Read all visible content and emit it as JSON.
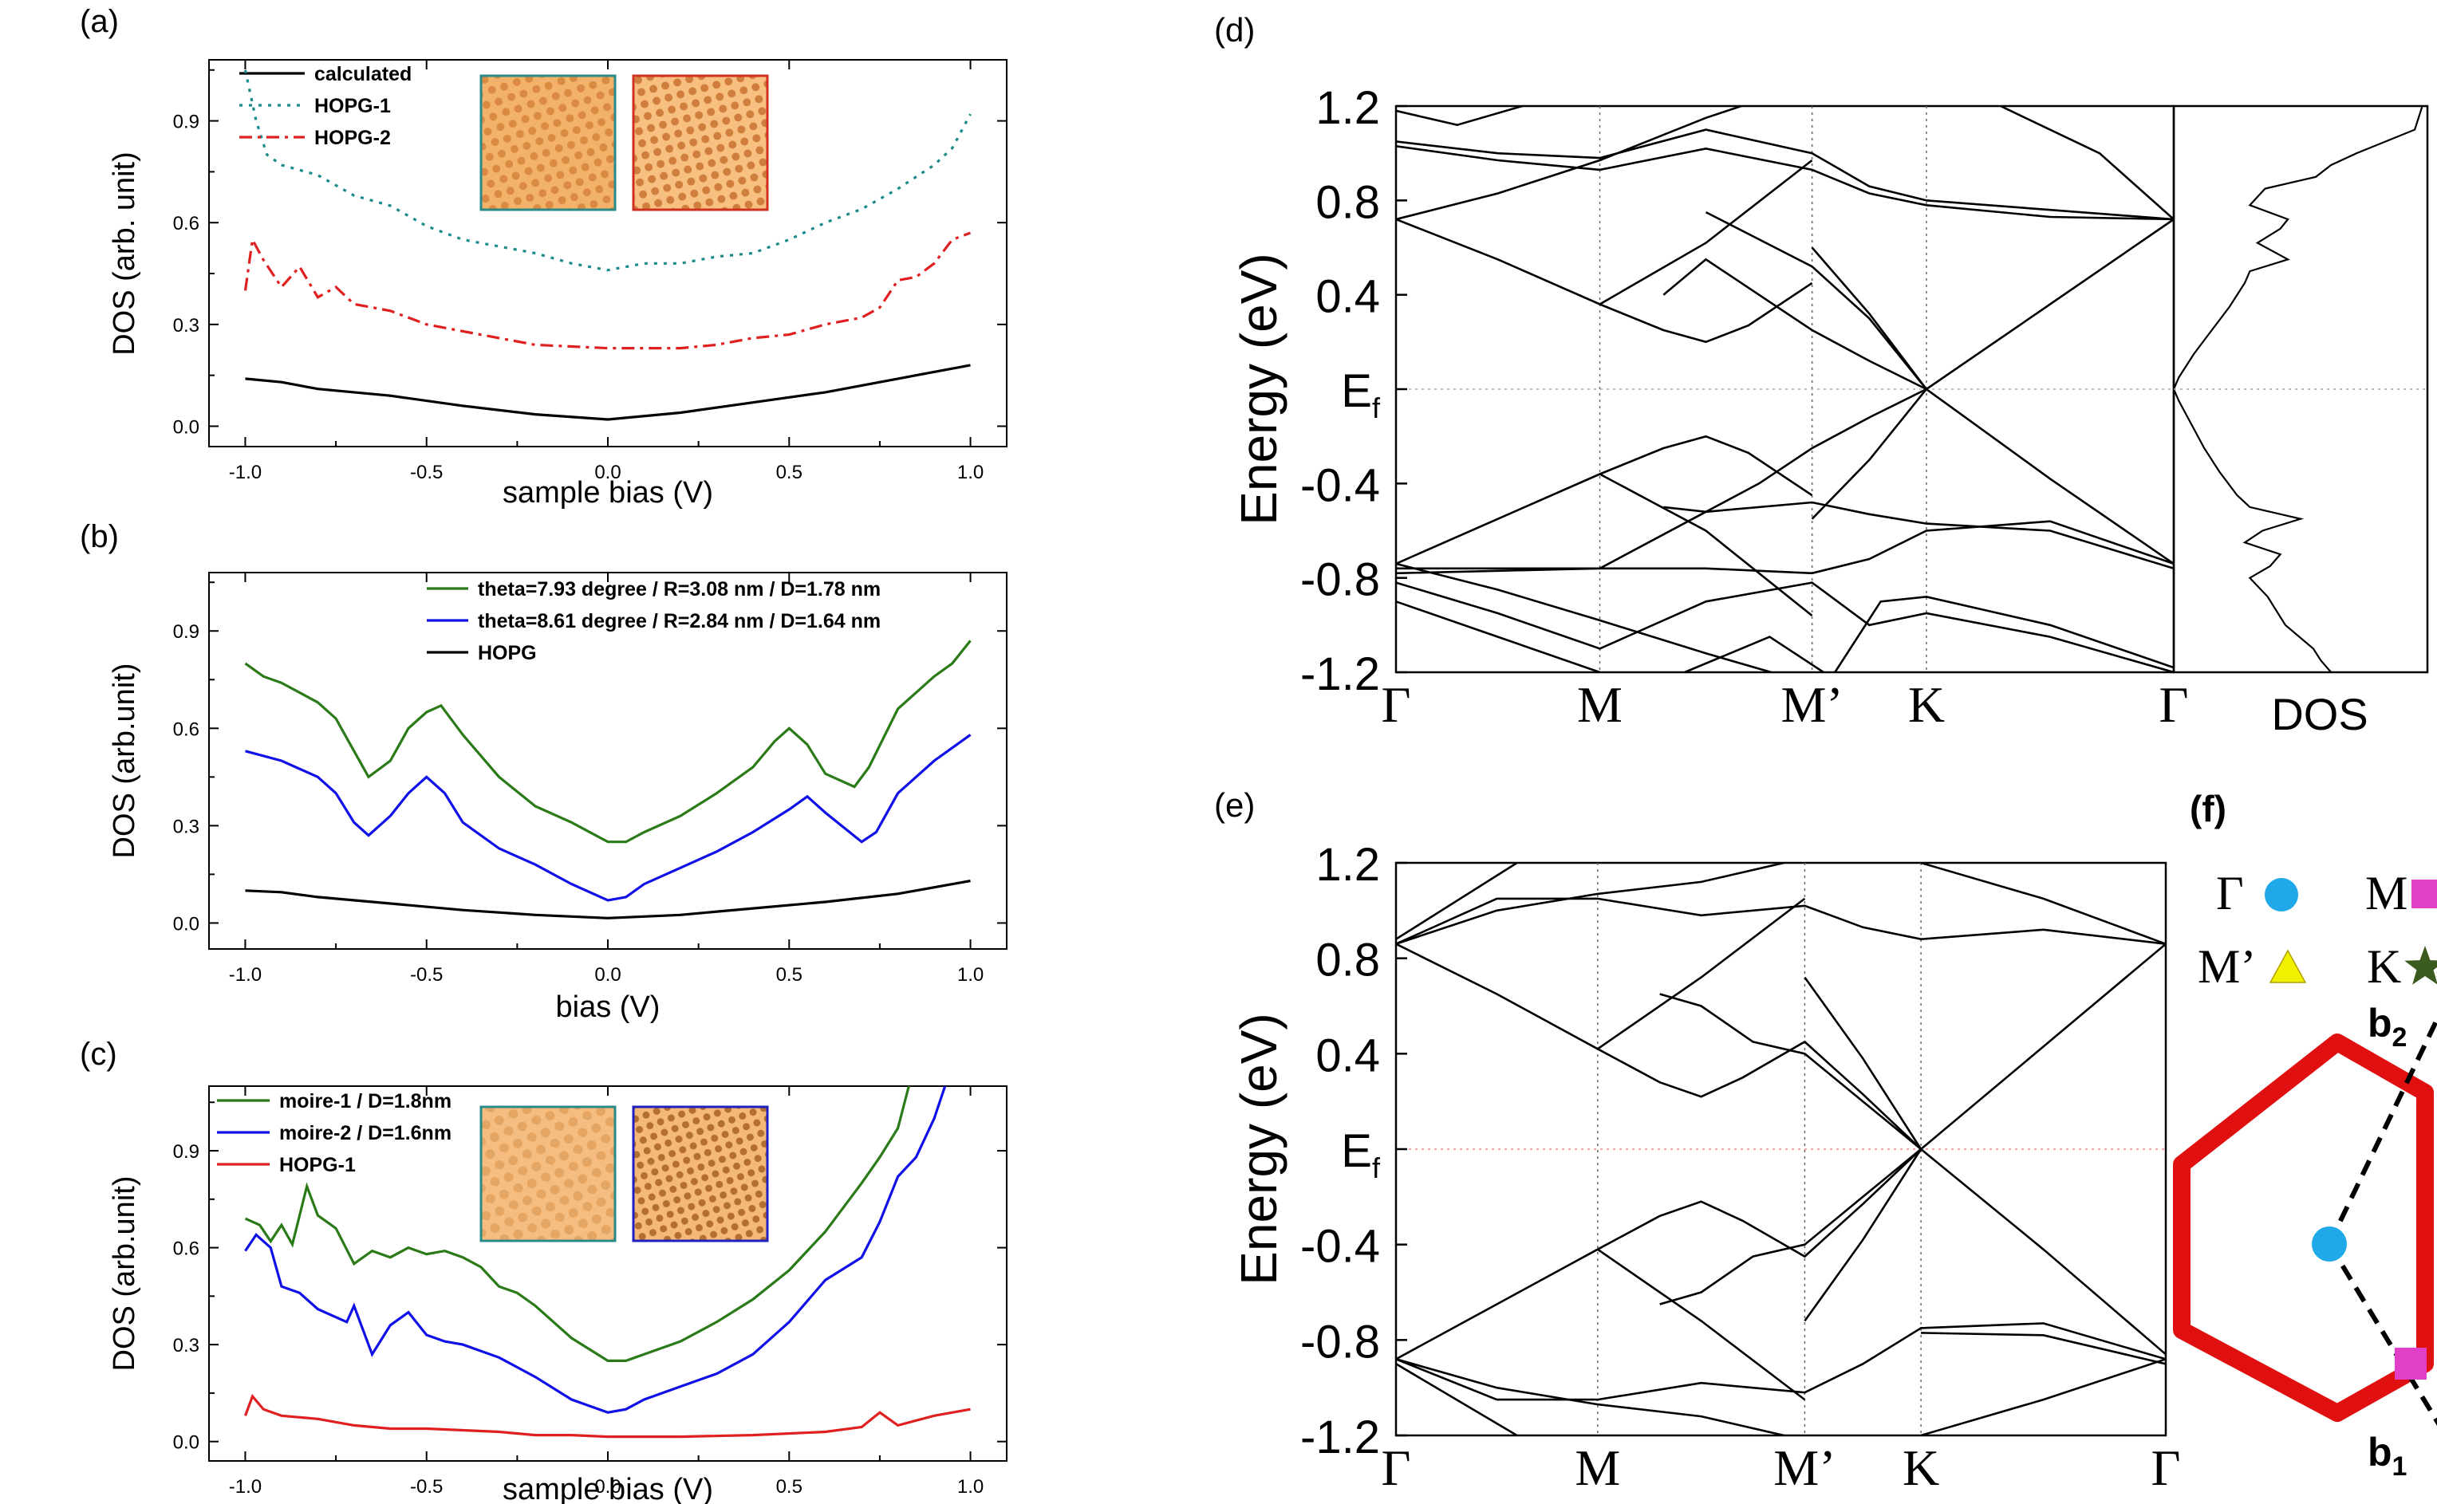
{
  "figure": {
    "colors": {
      "black": "#000000",
      "teal": "#1a8a8a",
      "red": "#e02020",
      "green": "#2a7a18",
      "blue": "#1010e8",
      "hexagon": "#e01010",
      "gamma_marker": "#20a8e8",
      "m_marker": "#e040c8",
      "mprime_marker": "#f0f000",
      "k_marker": "#3a5a20",
      "inset_orange": "#e8a050",
      "inset_border_teal": "#2a8a8a",
      "inset_border_red": "#d03020",
      "inset_border_blue": "#2020c0"
    }
  },
  "chart_data": [
    {
      "id": "a",
      "panel_label": "(a)",
      "type": "line",
      "xlabel": "sample bias (V)",
      "ylabel": "DOS (arb. unit)",
      "xlim": [
        -1.1,
        1.1
      ],
      "ylim": [
        -0.06,
        1.08
      ],
      "xticks": [
        -1.0,
        -0.5,
        0.0,
        0.5,
        1.0
      ],
      "xtick_labels": [
        "-1.0",
        "-0.5",
        "0.0",
        "0.5",
        "1.0"
      ],
      "yticks": [
        0.0,
        0.3,
        0.6,
        0.9
      ],
      "ytick_labels": [
        "0.0",
        "0.3",
        "0.6",
        "0.9"
      ],
      "legend": "top-left",
      "series": [
        {
          "name": "calculated",
          "color": "black",
          "style": "solid",
          "points": [
            [
              -1.0,
              0.14
            ],
            [
              -0.9,
              0.13
            ],
            [
              -0.8,
              0.11
            ],
            [
              -0.6,
              0.09
            ],
            [
              -0.4,
              0.06
            ],
            [
              -0.2,
              0.035
            ],
            [
              0.0,
              0.02
            ],
            [
              0.2,
              0.04
            ],
            [
              0.4,
              0.07
            ],
            [
              0.6,
              0.1
            ],
            [
              0.8,
              0.14
            ],
            [
              1.0,
              0.18
            ]
          ]
        },
        {
          "name": "HOPG-1",
          "color": "teal",
          "style": "dotted",
          "points": [
            [
              -1.0,
              1.05
            ],
            [
              -0.97,
              0.9
            ],
            [
              -0.94,
              0.8
            ],
            [
              -0.9,
              0.77
            ],
            [
              -0.8,
              0.74
            ],
            [
              -0.7,
              0.68
            ],
            [
              -0.6,
              0.65
            ],
            [
              -0.5,
              0.59
            ],
            [
              -0.4,
              0.55
            ],
            [
              -0.3,
              0.53
            ],
            [
              -0.2,
              0.51
            ],
            [
              -0.1,
              0.48
            ],
            [
              0.0,
              0.46
            ],
            [
              0.1,
              0.48
            ],
            [
              0.2,
              0.48
            ],
            [
              0.3,
              0.5
            ],
            [
              0.4,
              0.51
            ],
            [
              0.5,
              0.55
            ],
            [
              0.6,
              0.6
            ],
            [
              0.7,
              0.64
            ],
            [
              0.8,
              0.7
            ],
            [
              0.9,
              0.77
            ],
            [
              0.95,
              0.82
            ],
            [
              1.0,
              0.92
            ]
          ]
        },
        {
          "name": "HOPG-2",
          "color": "red",
          "style": "dashdot",
          "points": [
            [
              -1.0,
              0.4
            ],
            [
              -0.98,
              0.55
            ],
            [
              -0.95,
              0.49
            ],
            [
              -0.9,
              0.41
            ],
            [
              -0.85,
              0.47
            ],
            [
              -0.8,
              0.38
            ],
            [
              -0.75,
              0.41
            ],
            [
              -0.7,
              0.36
            ],
            [
              -0.6,
              0.34
            ],
            [
              -0.5,
              0.3
            ],
            [
              -0.4,
              0.28
            ],
            [
              -0.3,
              0.26
            ],
            [
              -0.2,
              0.24
            ],
            [
              -0.1,
              0.235
            ],
            [
              0.0,
              0.23
            ],
            [
              0.1,
              0.23
            ],
            [
              0.2,
              0.23
            ],
            [
              0.3,
              0.24
            ],
            [
              0.4,
              0.26
            ],
            [
              0.5,
              0.27
            ],
            [
              0.6,
              0.3
            ],
            [
              0.7,
              0.32
            ],
            [
              0.75,
              0.35
            ],
            [
              0.8,
              0.43
            ],
            [
              0.85,
              0.44
            ],
            [
              0.9,
              0.48
            ],
            [
              0.95,
              0.55
            ],
            [
              1.0,
              0.57
            ]
          ]
        }
      ]
    },
    {
      "id": "b",
      "panel_label": "(b)",
      "type": "line",
      "xlabel": "bias (V)",
      "ylabel": "DOS (arb.unit)",
      "xlim": [
        -1.1,
        1.1
      ],
      "ylim": [
        -0.08,
        1.08
      ],
      "xticks": [
        -1.0,
        -0.5,
        0.0,
        0.5,
        1.0
      ],
      "xtick_labels": [
        "-1.0",
        "-0.5",
        "0.0",
        "0.5",
        "1.0"
      ],
      "yticks": [
        0.0,
        0.3,
        0.6,
        0.9
      ],
      "ytick_labels": [
        "0.0",
        "0.3",
        "0.6",
        "0.9"
      ],
      "legend": "top-right",
      "series": [
        {
          "name": "theta=7.93 degree / R=3.08 nm / D=1.78 nm",
          "color": "green",
          "style": "solid",
          "points": [
            [
              -1.0,
              0.8
            ],
            [
              -0.95,
              0.76
            ],
            [
              -0.9,
              0.74
            ],
            [
              -0.8,
              0.68
            ],
            [
              -0.75,
              0.63
            ],
            [
              -0.7,
              0.53
            ],
            [
              -0.66,
              0.45
            ],
            [
              -0.6,
              0.5
            ],
            [
              -0.55,
              0.6
            ],
            [
              -0.5,
              0.65
            ],
            [
              -0.46,
              0.67
            ],
            [
              -0.4,
              0.58
            ],
            [
              -0.3,
              0.45
            ],
            [
              -0.2,
              0.36
            ],
            [
              -0.1,
              0.31
            ],
            [
              0.0,
              0.25
            ],
            [
              0.05,
              0.25
            ],
            [
              0.1,
              0.28
            ],
            [
              0.2,
              0.33
            ],
            [
              0.3,
              0.4
            ],
            [
              0.4,
              0.48
            ],
            [
              0.46,
              0.56
            ],
            [
              0.5,
              0.6
            ],
            [
              0.55,
              0.55
            ],
            [
              0.6,
              0.46
            ],
            [
              0.68,
              0.42
            ],
            [
              0.72,
              0.48
            ],
            [
              0.8,
              0.66
            ],
            [
              0.9,
              0.76
            ],
            [
              0.95,
              0.8
            ],
            [
              1.0,
              0.87
            ]
          ]
        },
        {
          "name": "theta=8.61 degree / R=2.84 nm / D=1.64 nm",
          "color": "blue",
          "style": "solid",
          "points": [
            [
              -1.0,
              0.53
            ],
            [
              -0.9,
              0.5
            ],
            [
              -0.8,
              0.45
            ],
            [
              -0.75,
              0.4
            ],
            [
              -0.7,
              0.31
            ],
            [
              -0.66,
              0.27
            ],
            [
              -0.6,
              0.33
            ],
            [
              -0.55,
              0.4
            ],
            [
              -0.5,
              0.45
            ],
            [
              -0.45,
              0.4
            ],
            [
              -0.4,
              0.31
            ],
            [
              -0.3,
              0.23
            ],
            [
              -0.2,
              0.18
            ],
            [
              -0.1,
              0.12
            ],
            [
              0.0,
              0.07
            ],
            [
              0.05,
              0.08
            ],
            [
              0.1,
              0.12
            ],
            [
              0.2,
              0.17
            ],
            [
              0.3,
              0.22
            ],
            [
              0.4,
              0.28
            ],
            [
              0.5,
              0.35
            ],
            [
              0.55,
              0.39
            ],
            [
              0.6,
              0.34
            ],
            [
              0.7,
              0.25
            ],
            [
              0.74,
              0.28
            ],
            [
              0.8,
              0.4
            ],
            [
              0.9,
              0.5
            ],
            [
              1.0,
              0.58
            ]
          ]
        },
        {
          "name": "HOPG",
          "color": "black",
          "style": "solid",
          "points": [
            [
              -1.0,
              0.1
            ],
            [
              -0.9,
              0.095
            ],
            [
              -0.8,
              0.08
            ],
            [
              -0.6,
              0.06
            ],
            [
              -0.4,
              0.04
            ],
            [
              -0.2,
              0.025
            ],
            [
              0.0,
              0.015
            ],
            [
              0.2,
              0.025
            ],
            [
              0.4,
              0.045
            ],
            [
              0.6,
              0.065
            ],
            [
              0.8,
              0.09
            ],
            [
              1.0,
              0.13
            ]
          ]
        }
      ]
    },
    {
      "id": "c",
      "panel_label": "(c)",
      "type": "line",
      "xlabel": "sample bias (V)",
      "ylabel": "DOS (arb.unit)",
      "xlim": [
        -1.1,
        1.1
      ],
      "ylim": [
        -0.06,
        1.1
      ],
      "xticks": [
        -1.0,
        -0.5,
        0.0,
        0.5,
        1.0
      ],
      "xtick_labels": [
        "-1.0",
        "-0.5",
        "0.0",
        "0.5",
        "1.0"
      ],
      "yticks": [
        0.0,
        0.3,
        0.6,
        0.9
      ],
      "ytick_labels": [
        "0.0",
        "0.3",
        "0.6",
        "0.9"
      ],
      "legend": "top-left",
      "series": [
        {
          "name": "moire-1 / D=1.8nm",
          "color": "green",
          "style": "solid",
          "points": [
            [
              -1.0,
              0.69
            ],
            [
              -0.96,
              0.67
            ],
            [
              -0.93,
              0.62
            ],
            [
              -0.9,
              0.67
            ],
            [
              -0.87,
              0.61
            ],
            [
              -0.83,
              0.79
            ],
            [
              -0.8,
              0.7
            ],
            [
              -0.75,
              0.66
            ],
            [
              -0.7,
              0.55
            ],
            [
              -0.65,
              0.59
            ],
            [
              -0.6,
              0.57
            ],
            [
              -0.55,
              0.6
            ],
            [
              -0.5,
              0.58
            ],
            [
              -0.45,
              0.59
            ],
            [
              -0.4,
              0.57
            ],
            [
              -0.35,
              0.54
            ],
            [
              -0.3,
              0.48
            ],
            [
              -0.25,
              0.46
            ],
            [
              -0.2,
              0.42
            ],
            [
              -0.1,
              0.32
            ],
            [
              0.0,
              0.25
            ],
            [
              0.05,
              0.25
            ],
            [
              0.1,
              0.27
            ],
            [
              0.2,
              0.31
            ],
            [
              0.3,
              0.37
            ],
            [
              0.4,
              0.44
            ],
            [
              0.5,
              0.53
            ],
            [
              0.6,
              0.65
            ],
            [
              0.7,
              0.8
            ],
            [
              0.75,
              0.88
            ],
            [
              0.8,
              0.97
            ],
            [
              0.83,
              1.1
            ]
          ]
        },
        {
          "name": "moire-2 / D=1.6nm",
          "color": "blue",
          "style": "solid",
          "points": [
            [
              -1.0,
              0.59
            ],
            [
              -0.97,
              0.64
            ],
            [
              -0.93,
              0.6
            ],
            [
              -0.9,
              0.48
            ],
            [
              -0.85,
              0.46
            ],
            [
              -0.8,
              0.41
            ],
            [
              -0.72,
              0.37
            ],
            [
              -0.7,
              0.42
            ],
            [
              -0.65,
              0.27
            ],
            [
              -0.6,
              0.36
            ],
            [
              -0.55,
              0.4
            ],
            [
              -0.5,
              0.33
            ],
            [
              -0.45,
              0.31
            ],
            [
              -0.4,
              0.3
            ],
            [
              -0.3,
              0.26
            ],
            [
              -0.2,
              0.2
            ],
            [
              -0.1,
              0.13
            ],
            [
              0.0,
              0.09
            ],
            [
              0.05,
              0.1
            ],
            [
              0.1,
              0.13
            ],
            [
              0.2,
              0.17
            ],
            [
              0.3,
              0.21
            ],
            [
              0.4,
              0.27
            ],
            [
              0.5,
              0.37
            ],
            [
              0.6,
              0.5
            ],
            [
              0.7,
              0.57
            ],
            [
              0.75,
              0.68
            ],
            [
              0.8,
              0.82
            ],
            [
              0.85,
              0.88
            ],
            [
              0.9,
              1.0
            ],
            [
              0.93,
              1.1
            ]
          ]
        },
        {
          "name": "HOPG-1",
          "color": "red",
          "style": "solid",
          "points": [
            [
              -1.0,
              0.08
            ],
            [
              -0.98,
              0.14
            ],
            [
              -0.95,
              0.1
            ],
            [
              -0.9,
              0.08
            ],
            [
              -0.8,
              0.07
            ],
            [
              -0.7,
              0.05
            ],
            [
              -0.6,
              0.04
            ],
            [
              -0.5,
              0.04
            ],
            [
              -0.4,
              0.035
            ],
            [
              -0.3,
              0.03
            ],
            [
              -0.2,
              0.02
            ],
            [
              -0.1,
              0.02
            ],
            [
              0.0,
              0.015
            ],
            [
              0.2,
              0.015
            ],
            [
              0.4,
              0.02
            ],
            [
              0.6,
              0.03
            ],
            [
              0.7,
              0.045
            ],
            [
              0.75,
              0.09
            ],
            [
              0.8,
              0.05
            ],
            [
              0.9,
              0.08
            ],
            [
              1.0,
              0.1
            ]
          ]
        }
      ]
    }
  ],
  "panels": {
    "a": {
      "label": "(a)"
    },
    "b": {
      "label": "(b)"
    },
    "c": {
      "label": "(c)"
    },
    "d": {
      "label": "(d)",
      "ylabel": "Energy (eV)",
      "yticks": [
        "1.2",
        "0.8",
        "0.4",
        "E",
        "-0.4",
        "-0.8",
        "-1.2"
      ],
      "ef_sub": "f",
      "kpoints": [
        "Γ",
        "M",
        "M’",
        "K",
        "Γ"
      ],
      "dos_label": "DOS",
      "bands_description": "twisted bilayer graphene band structure"
    },
    "e": {
      "label": "(e)",
      "ylabel": "Energy (eV)",
      "yticks": [
        "1.2",
        "0.8",
        "0.4",
        "E",
        "-0.4",
        "-0.8",
        "-1.2"
      ],
      "ef_sub": "f",
      "kpoints": [
        "Γ",
        "M",
        "M’",
        "K",
        "Γ"
      ]
    },
    "f": {
      "label": "(f)",
      "legend": [
        {
          "symbol": "Γ",
          "marker": "circle"
        },
        {
          "symbol": "M",
          "marker": "square"
        },
        {
          "symbol": "M’",
          "marker": "triangle"
        },
        {
          "symbol": "K",
          "marker": "star"
        }
      ],
      "b1": "b",
      "b1_sub": "1",
      "b2": "b",
      "b2_sub": "2"
    }
  }
}
